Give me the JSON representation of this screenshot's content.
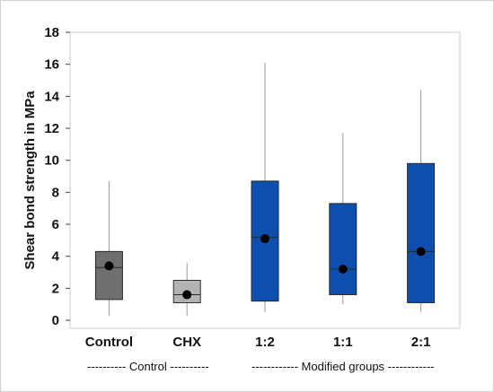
{
  "chart_data": {
    "type": "box",
    "ylabel": "Shear bond strength in MPa",
    "xlabel": "",
    "ylim": [
      -0.5,
      18
    ],
    "yticks": [
      0,
      2,
      4,
      6,
      8,
      10,
      12,
      14,
      16,
      18
    ],
    "categories": [
      "Control",
      "CHX",
      "1:2",
      "1:1",
      "2:1"
    ],
    "groups": [
      {
        "label": "---------- Control ----------",
        "categories": [
          "Control",
          "CHX"
        ]
      },
      {
        "label": "------------ Modified groups ------------",
        "categories": [
          "1:2",
          "1:1",
          "2:1"
        ]
      }
    ],
    "boxes": [
      {
        "category": "Control",
        "min": 0.3,
        "q1": 1.3,
        "median": 3.3,
        "q3": 4.3,
        "max": 8.7,
        "mean": 3.4,
        "color": "#6f6f6f"
      },
      {
        "category": "CHX",
        "min": 0.3,
        "q1": 1.1,
        "median": 1.6,
        "q3": 2.5,
        "max": 3.6,
        "mean": 1.6,
        "color": "#b3b3b3"
      },
      {
        "category": "1:2",
        "min": 0.5,
        "q1": 1.2,
        "median": 5.2,
        "q3": 8.7,
        "max": 16.1,
        "mean": 5.1,
        "color": "#0d4fae"
      },
      {
        "category": "1:1",
        "min": 1.0,
        "q1": 1.6,
        "median": 3.2,
        "q3": 7.3,
        "max": 11.7,
        "mean": 3.2,
        "color": "#0d4fae"
      },
      {
        "category": "2:1",
        "min": 0.5,
        "q1": 1.1,
        "median": 4.3,
        "q3": 9.8,
        "max": 14.4,
        "mean": 4.3,
        "color": "#0d4fae"
      }
    ],
    "grid": false,
    "legend": "none"
  }
}
